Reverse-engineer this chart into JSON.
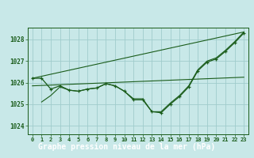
{
  "background_color": "#c8e8e8",
  "grid_color": "#a0cccc",
  "line_color": "#1a5c1a",
  "footer_color": "#2a6030",
  "footer_text_color": "#ffffff",
  "title": "Graphe pression niveau de la mer (hPa)",
  "ylabel_ticks": [
    1024,
    1025,
    1026,
    1027,
    1028
  ],
  "xlim": [
    -0.5,
    23.5
  ],
  "ylim": [
    1023.6,
    1028.55
  ],
  "xticks": [
    0,
    1,
    2,
    3,
    4,
    5,
    6,
    7,
    8,
    9,
    10,
    11,
    12,
    13,
    14,
    15,
    16,
    17,
    18,
    19,
    20,
    21,
    22,
    23
  ],
  "line1_x": [
    0,
    1,
    2,
    3,
    4,
    5,
    6,
    7,
    8,
    9,
    10,
    11,
    12,
    13,
    14,
    15,
    16,
    17,
    18,
    19,
    20,
    21,
    22,
    23
  ],
  "line1_y": [
    1026.2,
    1026.2,
    1025.7,
    1025.85,
    1025.65,
    1025.6,
    1025.7,
    1025.75,
    1025.95,
    1025.85,
    1025.6,
    1025.2,
    1025.2,
    1024.65,
    1024.6,
    1025.0,
    1025.35,
    1025.8,
    1026.55,
    1026.95,
    1027.1,
    1027.45,
    1027.85,
    1028.3
  ],
  "line2_x": [
    1,
    2,
    3,
    4,
    5,
    6,
    7,
    8,
    9,
    10,
    11,
    12,
    13,
    14,
    15,
    16,
    17,
    18,
    19,
    20,
    21,
    22,
    23
  ],
  "line2_y": [
    1025.1,
    1025.4,
    1025.8,
    1025.65,
    1025.6,
    1025.7,
    1025.75,
    1025.95,
    1025.85,
    1025.6,
    1025.25,
    1025.25,
    1024.65,
    1024.65,
    1025.05,
    1025.4,
    1025.85,
    1026.6,
    1027.0,
    1027.15,
    1027.5,
    1027.9,
    1028.35
  ],
  "trend1_x": [
    0,
    23
  ],
  "trend1_y": [
    1025.85,
    1026.25
  ],
  "trend2_x": [
    0,
    23
  ],
  "trend2_y": [
    1026.2,
    1028.35
  ]
}
